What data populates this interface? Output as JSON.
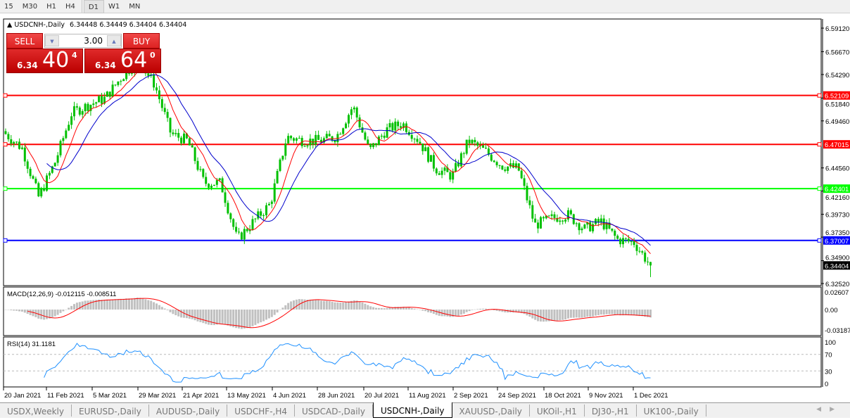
{
  "timeframes": [
    "15",
    "M30",
    "H1",
    "H4",
    "D1",
    "W1",
    "MN"
  ],
  "active_timeframe": "D1",
  "chart_title": "USDCNH-,Daily",
  "ohlc_text": "6.34448 6.34449 6.34404 6.34404",
  "one_click": {
    "sell_label": "SELL",
    "buy_label": "BUY",
    "lot": "3.00",
    "sell_prefix": "6.34",
    "sell_big": "40",
    "sell_sup": "4",
    "buy_prefix": "6.34",
    "buy_big": "64",
    "buy_sup": "0"
  },
  "price_axis": [
    "6.59120",
    "6.56670",
    "6.54290",
    "6.51840",
    "6.49460",
    "6.44560",
    "6.42160",
    "6.39730",
    "6.37350",
    "6.34900",
    "6.32520"
  ],
  "levels": [
    {
      "price": "6.52109",
      "color": "#ff0000"
    },
    {
      "price": "6.47015",
      "color": "#ff0000"
    },
    {
      "price": "6.42401",
      "color": "#00ff00"
    },
    {
      "price": "6.37007",
      "color": "#0000ff"
    }
  ],
  "current_price": "6.34404",
  "macd": {
    "label": "MACD(12,26,9) -0.012115 -0.008511",
    "axis": [
      "0.02607",
      "0.00",
      "-0.03187"
    ]
  },
  "rsi": {
    "label": "RSI(14) 31.1181",
    "axis": [
      "100",
      "70",
      "30",
      "0"
    ]
  },
  "dates": [
    "20 Jan 2021",
    "11 Feb 2021",
    "5 Mar 2021",
    "29 Mar 2021",
    "21 Apr 2021",
    "13 May 2021",
    "4 Jun 2021",
    "28 Jun 2021",
    "20 Jul 2021",
    "11 Aug 2021",
    "2 Sep 2021",
    "24 Sep 2021",
    "18 Oct 2021",
    "9 Nov 2021",
    "1 Dec 2021"
  ],
  "bottom_tabs": [
    "USDX,Weekly",
    "EURUSD-,Daily",
    "AUDUSD-,Daily",
    "USDCHF-,H4",
    "USDCAD-,Daily",
    "USDCNH-,Daily",
    "XAUUSD-,Daily",
    "UKOil-,H1",
    "DJ30-,H1",
    "UK100-,Daily"
  ],
  "active_tab": "USDCNH-,Daily",
  "colors": {
    "candle": "#00c000",
    "ma_fast": "#ff0000",
    "ma_slow": "#0000cc",
    "macd_hist": "#c0c0c0",
    "macd_signal": "#ff0000",
    "rsi": "#1e90ff"
  },
  "chart_data": {
    "type": "candlestick",
    "approx_closes": [
      6.481,
      6.466,
      6.415,
      6.452,
      6.503,
      6.511,
      6.518,
      6.54,
      6.558,
      6.533,
      6.481,
      6.474,
      6.43,
      6.43,
      6.371,
      6.39,
      6.408,
      6.478,
      6.474,
      6.474,
      6.478,
      6.51,
      6.463,
      6.485,
      6.492,
      6.474,
      6.445,
      6.437,
      6.474,
      6.463,
      6.448,
      6.445,
      6.386,
      6.393,
      6.397,
      6.382,
      6.39,
      6.371,
      6.368,
      6.344
    ],
    "ylim": [
      6.3252,
      6.5912
    ]
  }
}
